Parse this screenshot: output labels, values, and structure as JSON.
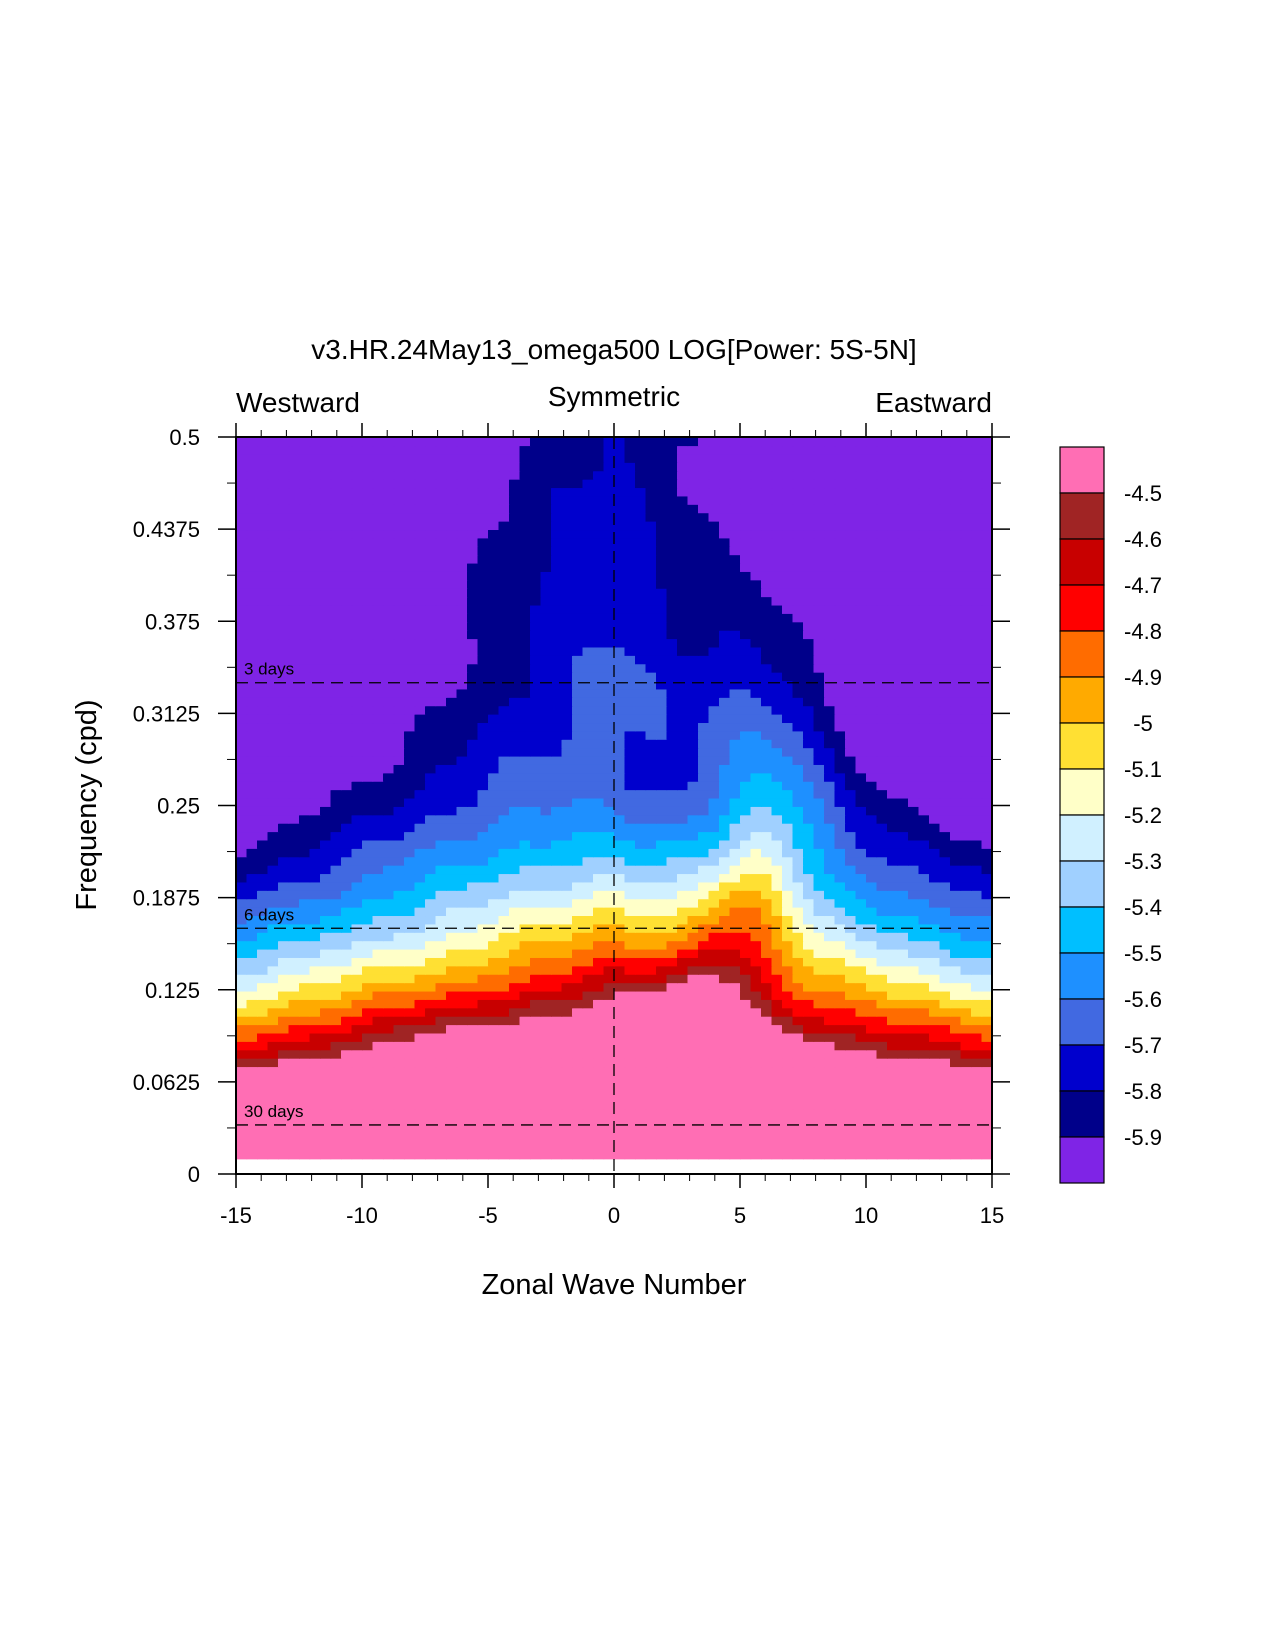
{
  "chart_data": {
    "type": "heatmap",
    "title": "v3.HR.24May13_omega500 LOG[Power: 5S-5N]",
    "top_labels": {
      "left": "Westward",
      "center": "Symmetric",
      "right": "Eastward"
    },
    "xlabel": "Zonal Wave Number",
    "ylabel": "Frequency (cpd)",
    "xlim": [
      -15,
      15
    ],
    "ylim": [
      0,
      0.5
    ],
    "x_ticks": [
      -15,
      -10,
      -5,
      0,
      5,
      10,
      15
    ],
    "x_tick_labels": [
      "-15",
      "-10",
      "-5",
      "0",
      "5",
      "10",
      "15"
    ],
    "y_ticks": [
      0,
      0.0625,
      0.125,
      0.1875,
      0.25,
      0.3125,
      0.375,
      0.4375,
      0.5
    ],
    "y_tick_labels": [
      "0",
      "0.0625",
      "0.125",
      "0.1875",
      "0.25",
      "0.3125",
      "0.375",
      "0.4375",
      "0.5"
    ],
    "period_lines": [
      {
        "label": "3 days",
        "freq": 0.3333
      },
      {
        "label": "6 days",
        "freq": 0.1667
      },
      {
        "label": "30 days",
        "freq": 0.0333
      }
    ],
    "contour_levels": [
      -5.9,
      -5.8,
      -5.7,
      -5.6,
      -5.5,
      -5.4,
      -5.3,
      -5.2,
      -5.1,
      -5,
      -4.9,
      -4.8,
      -4.7,
      -4.6,
      -4.5
    ],
    "colorbar_labels": [
      "-4.5",
      "-4.6",
      "-4.7",
      "-4.8",
      "-4.9",
      "-5",
      "-5.1",
      "-5.2",
      "-5.3",
      "-5.4",
      "-5.5",
      "-5.6",
      "-5.7",
      "-5.8",
      "-5.9"
    ],
    "colors": [
      "#7f24e6",
      "#00008a",
      "#0000cd",
      "#4169e1",
      "#1e90ff",
      "#00bfff",
      "#a0d0ff",
      "#d0f0ff",
      "#ffffc8",
      "#ffe033",
      "#ffaa00",
      "#ff6c00",
      "#ff0000",
      "#c80000",
      "#a02424",
      "#ff6eb4"
    ],
    "data_min_freq": 0.0104,
    "data_max_freq": 0.5
  }
}
